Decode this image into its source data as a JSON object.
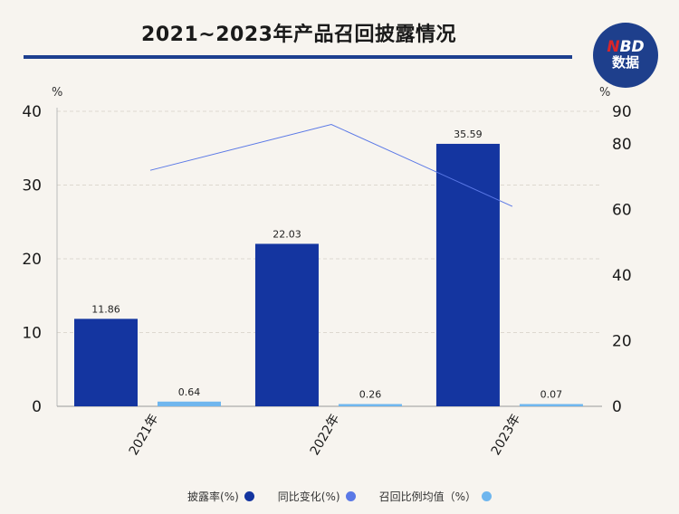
{
  "header": {
    "title": "2021~2023年产品召回披露情况"
  },
  "logo": {
    "line1_n": "N",
    "line1_rest": "BD",
    "line2": "数据"
  },
  "chart_data": {
    "type": "bar",
    "categories": [
      "2021年",
      "2022年",
      "2023年"
    ],
    "series": [
      {
        "name": "披露率(%)",
        "kind": "bar",
        "axis": "left",
        "color": "#1435a0",
        "values": [
          11.86,
          22.03,
          35.59
        ]
      },
      {
        "name": "召回比例均值（%）",
        "kind": "bar",
        "axis": "left",
        "color": "#6fb6ee",
        "values": [
          0.64,
          0.26,
          0.07
        ]
      },
      {
        "name": "同比变化(%)",
        "kind": "line",
        "axis": "right",
        "color": "#5a78e6",
        "values": [
          72,
          86,
          61
        ]
      }
    ],
    "left_axis": {
      "unit": "%",
      "ylim": [
        0,
        40
      ],
      "ticks": [
        0,
        10,
        20,
        30,
        40
      ]
    },
    "right_axis": {
      "unit": "%",
      "ylim": [
        0,
        90
      ],
      "ticks": [
        0,
        20,
        40,
        60,
        80,
        90
      ]
    },
    "grid": true,
    "legend_position": "bottom"
  }
}
